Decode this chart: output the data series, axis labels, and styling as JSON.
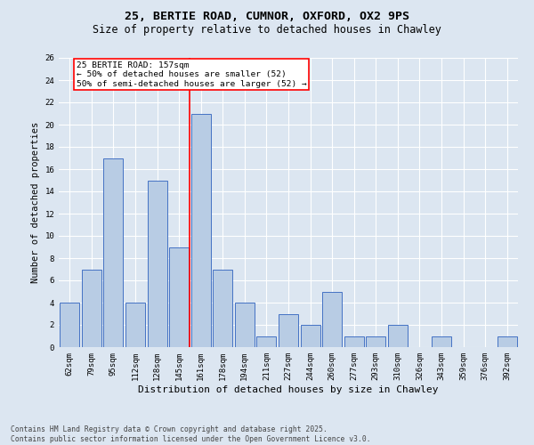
{
  "title": "25, BERTIE ROAD, CUMNOR, OXFORD, OX2 9PS",
  "subtitle": "Size of property relative to detached houses in Chawley",
  "xlabel": "Distribution of detached houses by size in Chawley",
  "ylabel": "Number of detached properties",
  "categories": [
    "62sqm",
    "79sqm",
    "95sqm",
    "112sqm",
    "128sqm",
    "145sqm",
    "161sqm",
    "178sqm",
    "194sqm",
    "211sqm",
    "227sqm",
    "244sqm",
    "260sqm",
    "277sqm",
    "293sqm",
    "310sqm",
    "326sqm",
    "343sqm",
    "359sqm",
    "376sqm",
    "392sqm"
  ],
  "values": [
    4,
    7,
    17,
    4,
    15,
    9,
    21,
    7,
    4,
    1,
    3,
    2,
    5,
    1,
    1,
    2,
    0,
    1,
    0,
    0,
    1
  ],
  "bar_color": "#b8cce4",
  "bar_edge_color": "#4472c4",
  "background_color": "#dce6f1",
  "plot_bg_color": "#dce6f1",
  "vline_x": 5.5,
  "vline_color": "red",
  "annotation_text_line1": "25 BERTIE ROAD: 157sqm",
  "annotation_text_line2": "← 50% of detached houses are smaller (52)",
  "annotation_text_line3": "50% of semi-detached houses are larger (52) →",
  "ylim": [
    0,
    26
  ],
  "yticks": [
    0,
    2,
    4,
    6,
    8,
    10,
    12,
    14,
    16,
    18,
    20,
    22,
    24,
    26
  ],
  "footer_line1": "Contains HM Land Registry data © Crown copyright and database right 2025.",
  "footer_line2": "Contains public sector information licensed under the Open Government Licence v3.0.",
  "title_fontsize": 9.5,
  "subtitle_fontsize": 8.5,
  "xlabel_fontsize": 8,
  "ylabel_fontsize": 7.5,
  "tick_fontsize": 6.5,
  "annotation_fontsize": 6.8,
  "footer_fontsize": 5.8
}
